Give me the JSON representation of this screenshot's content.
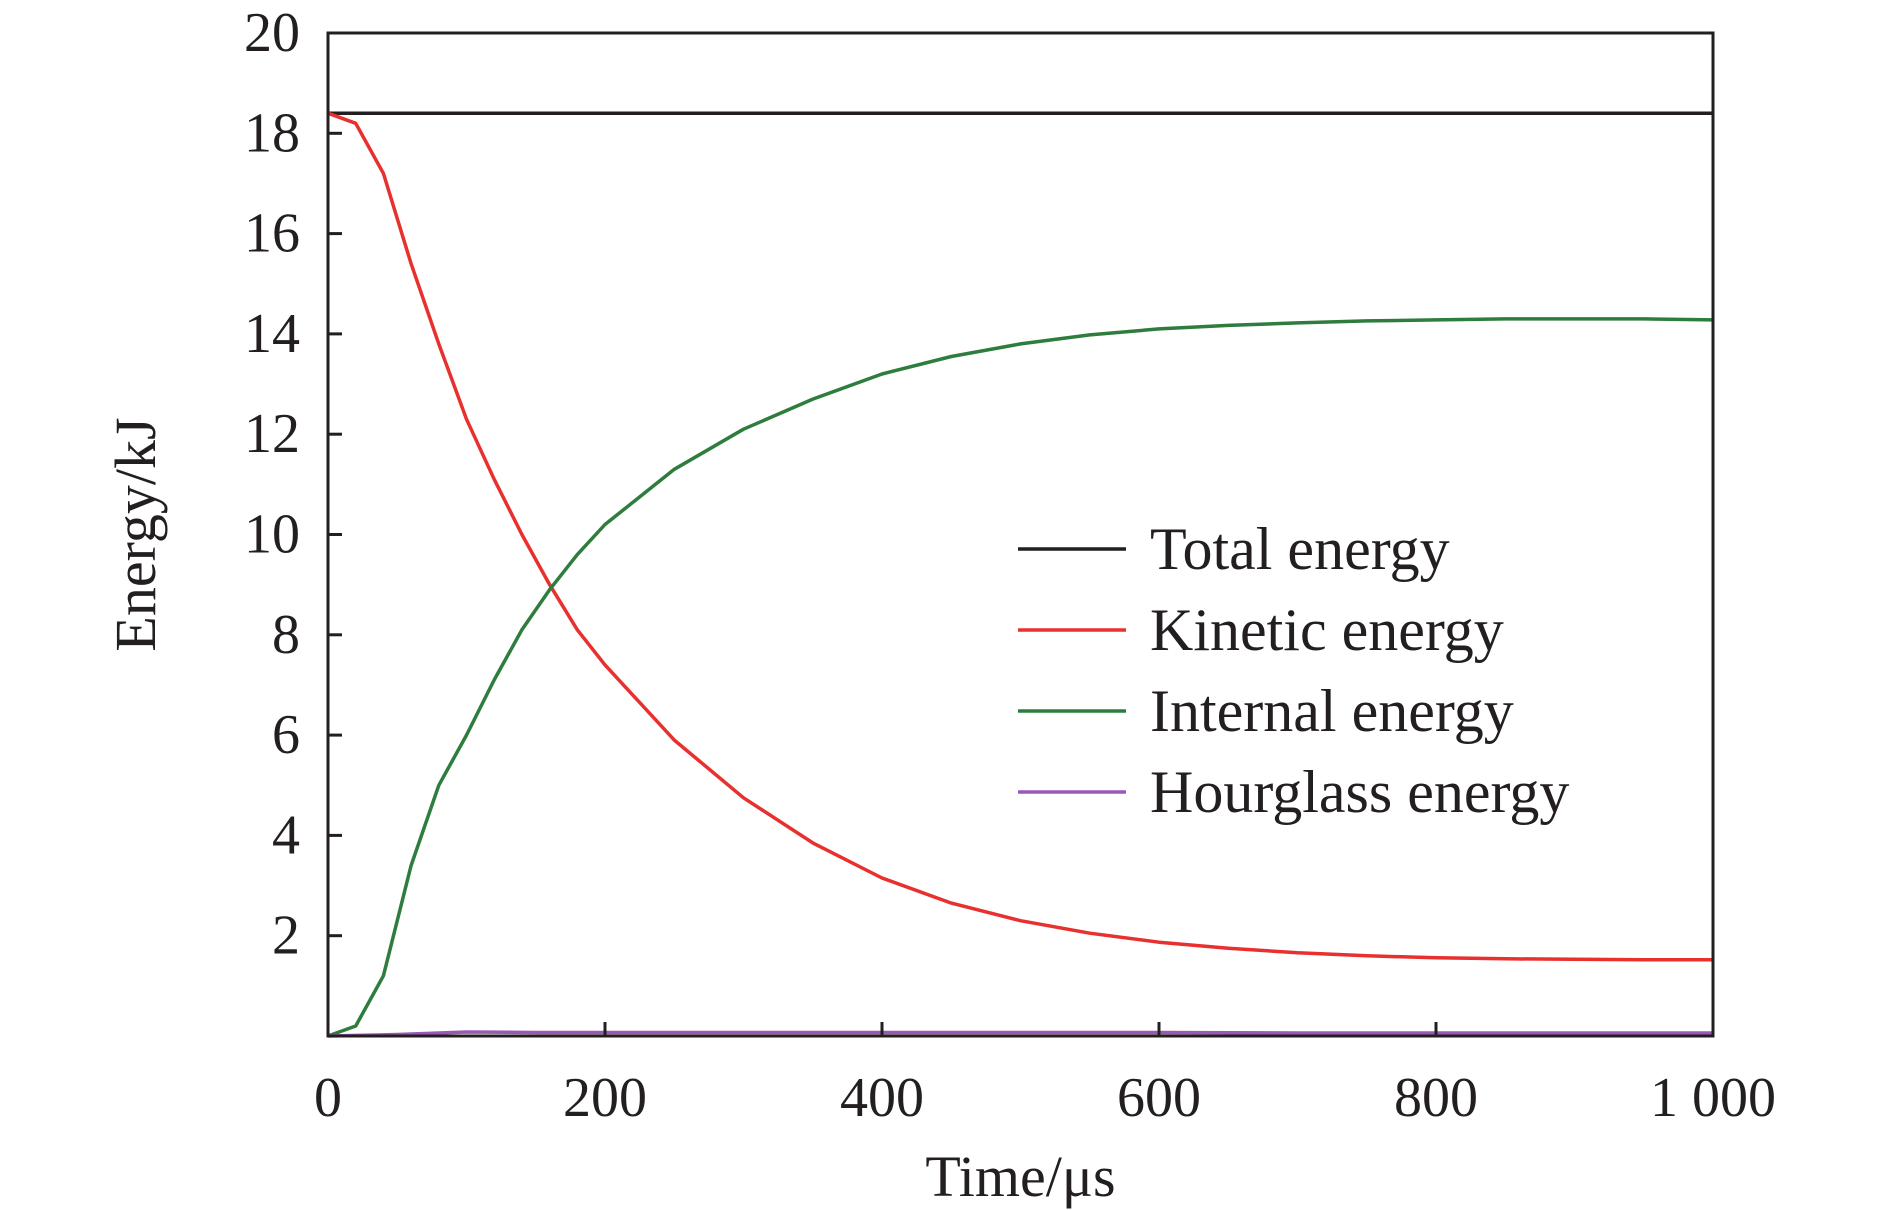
{
  "chart_data": {
    "type": "line",
    "title": "",
    "xlabel": "Time/μs",
    "ylabel": "Energy/kJ",
    "xlim": [
      0,
      1000
    ],
    "ylim": [
      0,
      20
    ],
    "x_ticks": [
      0,
      200,
      400,
      600,
      800,
      1000
    ],
    "x_tick_labels": [
      "0",
      "200",
      "400",
      "600",
      "800",
      "1 000"
    ],
    "y_ticks": [
      2,
      4,
      6,
      8,
      10,
      12,
      14,
      16,
      18,
      20
    ],
    "y_tick_labels": [
      "2",
      "4",
      "6",
      "8",
      "10",
      "12",
      "14",
      "16",
      "18",
      "20"
    ],
    "legend_position": "center-right",
    "grid": false,
    "series": [
      {
        "name": "Total energy",
        "color": "#231f20",
        "x": [
          0,
          1000
        ],
        "y": [
          18.4,
          18.4
        ]
      },
      {
        "name": "Kinetic energy",
        "color": "#e8302e",
        "x": [
          0,
          20,
          40,
          60,
          80,
          100,
          120,
          140,
          160,
          180,
          200,
          250,
          300,
          350,
          400,
          450,
          500,
          550,
          600,
          650,
          700,
          750,
          800,
          850,
          900,
          950,
          1000
        ],
        "y": [
          18.4,
          18.2,
          17.2,
          15.4,
          13.8,
          12.3,
          11.1,
          10.0,
          9.0,
          8.1,
          7.4,
          5.9,
          4.75,
          3.85,
          3.15,
          2.65,
          2.3,
          2.05,
          1.87,
          1.75,
          1.66,
          1.6,
          1.56,
          1.54,
          1.53,
          1.52,
          1.52
        ]
      },
      {
        "name": "Internal energy",
        "color": "#2e7d3e",
        "x": [
          0,
          20,
          40,
          60,
          80,
          100,
          120,
          140,
          160,
          180,
          200,
          250,
          300,
          350,
          400,
          450,
          500,
          550,
          600,
          650,
          700,
          750,
          800,
          850,
          900,
          950,
          1000
        ],
        "y": [
          0,
          0.2,
          1.2,
          3.4,
          5.0,
          6.0,
          7.1,
          8.1,
          8.9,
          9.6,
          10.2,
          11.3,
          12.1,
          12.7,
          13.2,
          13.55,
          13.8,
          13.98,
          14.1,
          14.17,
          14.22,
          14.26,
          14.28,
          14.3,
          14.3,
          14.3,
          14.28
        ]
      },
      {
        "name": "Hourglass energy",
        "color": "#9b59b6",
        "x": [
          0,
          50,
          100,
          150,
          200,
          300,
          400,
          500,
          600,
          700,
          800,
          900,
          1000
        ],
        "y": [
          0,
          0.03,
          0.08,
          0.07,
          0.07,
          0.07,
          0.07,
          0.07,
          0.07,
          0.06,
          0.06,
          0.06,
          0.06
        ]
      }
    ]
  }
}
